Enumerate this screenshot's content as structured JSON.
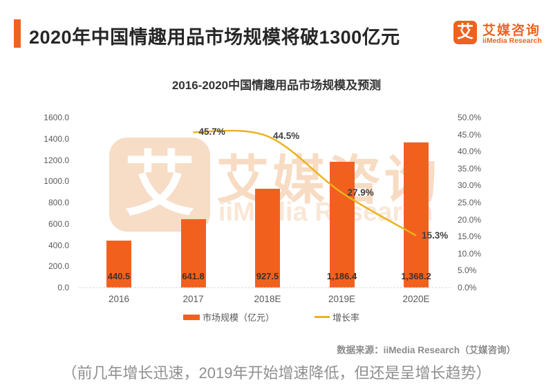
{
  "header": {
    "title": "2020年中国情趣用品市场规模将破1300亿元",
    "logo": {
      "glyph": "艾",
      "name": "艾媒咨询",
      "subtitle": "iiMedia Research"
    }
  },
  "chart_data": {
    "type": "bar",
    "title": "2016-2020中国情趣用品市场规模及预测",
    "categories": [
      "2016",
      "2017",
      "2018E",
      "2019E",
      "2020E"
    ],
    "series": [
      {
        "name": "市场规模（亿元）",
        "type": "bar",
        "color": "#F2601E",
        "values": [
          440.5,
          641.8,
          927.5,
          1186.4,
          1368.2
        ],
        "labels": [
          "440.5",
          "641.8",
          "927.5",
          "1,186.4",
          "1,368.2"
        ]
      },
      {
        "name": "增长率",
        "type": "line",
        "color": "#EAB31E",
        "values": [
          null,
          45.7,
          44.5,
          27.9,
          15.3
        ],
        "labels": [
          "45.7%",
          "44.5%",
          "27.9%",
          "15.3%"
        ]
      }
    ],
    "left_axis": {
      "min": 0,
      "max": 1600,
      "step": 200,
      "labels": [
        "0.0",
        "200.0",
        "400.0",
        "600.0",
        "800.0",
        "1000.0",
        "1200.0",
        "1400.0",
        "1600.0"
      ]
    },
    "right_axis": {
      "min": 0,
      "max": 50,
      "step": 5,
      "labels": [
        "0.0%",
        "5.0%",
        "10.0%",
        "15.0%",
        "20.0%",
        "25.0%",
        "30.0%",
        "35.0%",
        "40.0%",
        "45.0%",
        "50.0%"
      ]
    },
    "legend_position": "bottom"
  },
  "watermark": {
    "glyph": "艾",
    "name": "艾媒咨询",
    "subtitle": "iiMedia Research"
  },
  "source": "数据来源：iiMedia Research（艾媒咨询）",
  "caption": "（前几年增长迅速，2019年开始增速降低，但还是呈增长趋势）"
}
